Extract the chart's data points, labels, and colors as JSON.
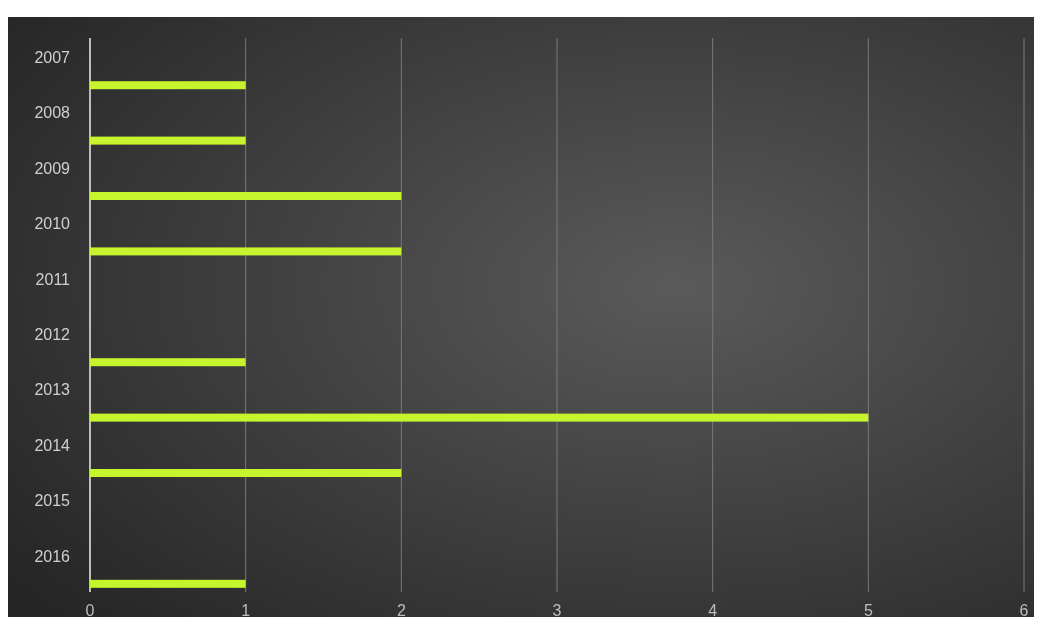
{
  "chart_data": {
    "type": "bar",
    "orientation": "horizontal",
    "categories": [
      "2007",
      "2008",
      "2009",
      "2010",
      "2011",
      "2012",
      "2013",
      "2014",
      "2015",
      "2016"
    ],
    "series": [
      {
        "color": "#c6f52d",
        "values": [
          1,
          1,
          2,
          2,
          null,
          1,
          5,
          2,
          null,
          1
        ]
      }
    ],
    "xlim": [
      0,
      6
    ],
    "xticks": [
      0,
      1,
      2,
      3,
      4,
      5,
      6
    ],
    "grid": "x"
  }
}
